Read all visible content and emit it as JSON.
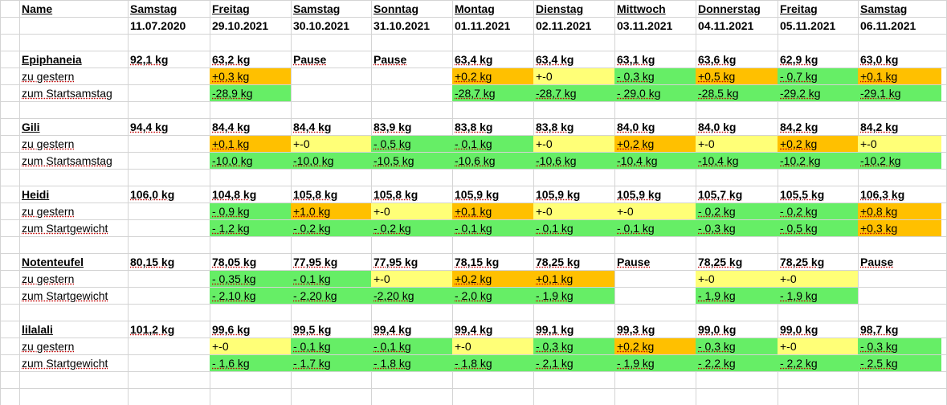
{
  "header": {
    "name_label": "Name",
    "days": [
      "Samstag",
      "Freitag",
      "Samstag",
      "Sonntag",
      "Montag",
      "Dienstag",
      "Mittwoch",
      "Donnerstag",
      "Freitag",
      "Samstag"
    ],
    "dates": [
      "11.07.2020",
      "29.10.2021",
      "30.10.2021",
      "31.10.2021",
      "01.11.2021",
      "02.11.2021",
      "03.11.2021",
      "04.11.2021",
      "05.11.2021",
      "06.11.2021"
    ]
  },
  "colors": {
    "green": "#66ee66",
    "yellow": "#ffff77",
    "orange": "#ffc000",
    "grid": "#d4d4d4"
  },
  "people": [
    {
      "name": "Epiphaneia",
      "row_labels": [
        "zu gestern",
        "zum Startsamstag"
      ],
      "weights": [
        "92,1 kg",
        "63,2 kg",
        "Pause",
        "Pause",
        "63,4 kg",
        "63,4 kg",
        "63,1 kg",
        "63,6 kg",
        "62,9 kg",
        "63,0 kg"
      ],
      "vs_yesterday": [
        "",
        "+0,3 kg",
        "",
        "",
        "+0,2 kg",
        "+-0",
        "- 0,3 kg",
        "+0,5 kg",
        "- 0,7 kg",
        "+0,1 kg"
      ],
      "vs_yesterday_colors": [
        "",
        "orange",
        "",
        "",
        "orange",
        "yellow",
        "green",
        "orange",
        "green",
        "orange"
      ],
      "vs_start": [
        "",
        "-28,9 kg",
        "",
        "",
        "-28,7 kg",
        "-28,7 kg",
        "- 29,0 kg",
        "-28,5 kg",
        "-29,2 kg",
        "-29,1 kg"
      ],
      "vs_start_colors": [
        "",
        "green",
        "",
        "",
        "green",
        "green",
        "green",
        "green",
        "green",
        "green"
      ]
    },
    {
      "name": "Gili",
      "row_labels": [
        "zu gestern",
        "zum Startsamstag"
      ],
      "weights": [
        "94,4 kg",
        "84,4 kg",
        "84,4 kg",
        "83,9 kg",
        "83,8 kg",
        "83,8 kg",
        "84,0 kg",
        "84,0 kg",
        "84,2 kg",
        "84,2 kg"
      ],
      "vs_yesterday": [
        "",
        "+0,1 kg",
        "+-0",
        "- 0,5 kg",
        "- 0,1 kg",
        "+-0",
        "+0,2 kg",
        "+-0",
        "+0,2 kg",
        "+-0"
      ],
      "vs_yesterday_colors": [
        "",
        "orange",
        "yellow",
        "green",
        "green",
        "yellow",
        "orange",
        "yellow",
        "orange",
        "yellow"
      ],
      "vs_start": [
        "",
        "-10,0 kg",
        "-10,0 kg",
        "-10,5 kg",
        "-10,6 kg",
        "-10,6 kg",
        "-10,4 kg",
        "-10,4 kg",
        "-10,2 kg",
        "-10,2 kg"
      ],
      "vs_start_colors": [
        "",
        "green",
        "green",
        "green",
        "green",
        "green",
        "green",
        "green",
        "green",
        "green"
      ]
    },
    {
      "name": "Heidi",
      "row_labels": [
        "zu gestern",
        "zum Startgewicht"
      ],
      "weights": [
        "106,0 kg",
        "104,8 kg",
        "105,8 kg",
        "105,8 kg",
        "105,9 kg",
        "105,9 kg",
        "105,9 kg",
        "105,7 kg",
        "105,5 kg",
        "106,3 kg"
      ],
      "vs_yesterday": [
        "",
        "- 0,9 kg",
        "+1,0 kg",
        "+-0",
        "+0,1 kg",
        "+-0",
        "+-0",
        "- 0,2 kg",
        "- 0,2 kg",
        "+0,8 kg"
      ],
      "vs_yesterday_colors": [
        "",
        "green",
        "orange",
        "yellow",
        "orange",
        "yellow",
        "yellow",
        "green",
        "green",
        "orange"
      ],
      "vs_start": [
        "",
        "- 1,2 kg",
        "- 0,2 kg",
        "- 0,2 kg",
        "- 0,1 kg",
        "- 0,1 kg",
        "- 0,1 kg",
        "- 0,3 kg",
        "- 0,5 kg",
        "+0,3 kg"
      ],
      "vs_start_colors": [
        "",
        "green",
        "green",
        "green",
        "green",
        "green",
        "green",
        "green",
        "green",
        "orange"
      ]
    },
    {
      "name": "Notenteufel",
      "row_labels": [
        "zu gestern",
        "zum Startgewicht"
      ],
      "weights": [
        "80,15 kg",
        "78,05 kg",
        "77,95 kg",
        "77,95 kg",
        "78,15 kg",
        "78,25 kg",
        "Pause",
        "78,25 kg",
        "78,25 kg",
        "Pause"
      ],
      "vs_yesterday": [
        "",
        "- 0,35 kg",
        "- 0,1 kg",
        "+-0",
        "+0,2 kg",
        "+0,1 kg",
        "",
        "+-0",
        "+-0",
        ""
      ],
      "vs_yesterday_colors": [
        "",
        "green",
        "green",
        "yellow",
        "orange",
        "orange",
        "",
        "yellow",
        "yellow",
        ""
      ],
      "vs_start": [
        "",
        "- 2,10 kg",
        "- 2,20 kg",
        "-2,20 kg",
        "- 2,0 kg",
        "- 1,9 kg",
        "",
        "- 1,9 kg",
        "- 1,9 kg",
        ""
      ],
      "vs_start_colors": [
        "",
        "green",
        "green",
        "green",
        "green",
        "green",
        "",
        "green",
        "green",
        ""
      ]
    },
    {
      "name": "lilalali",
      "row_labels": [
        "zu gestern",
        "zum Startgewicht"
      ],
      "weights": [
        "101,2 kg",
        "99,6 kg",
        "99,5 kg",
        "99,4 kg",
        "99,4 kg",
        "99,1 kg",
        "99,3 kg",
        "99,0 kg",
        "99,0 kg",
        "98,7 kg"
      ],
      "vs_yesterday": [
        "",
        "+-0",
        "- 0,1 kg",
        "- 0,1 kg",
        "+-0",
        "- 0,3 kg",
        "+0,2 kg",
        "- 0,3 kg",
        "+-0",
        "- 0,3 kg"
      ],
      "vs_yesterday_colors": [
        "",
        "yellow",
        "green",
        "green",
        "yellow",
        "green",
        "orange",
        "green",
        "yellow",
        "green"
      ],
      "vs_start": [
        "",
        "- 1,6 kg",
        "- 1,7 kg",
        "- 1,8 kg",
        "- 1,8 kg",
        "- 2,1 kg",
        "- 1,9 kg",
        "- 2,2 kg",
        "- 2,2 kg",
        "- 2,5 kg"
      ],
      "vs_start_colors": [
        "",
        "green",
        "green",
        "green",
        "green",
        "green",
        "green",
        "green",
        "green",
        "green"
      ]
    }
  ]
}
